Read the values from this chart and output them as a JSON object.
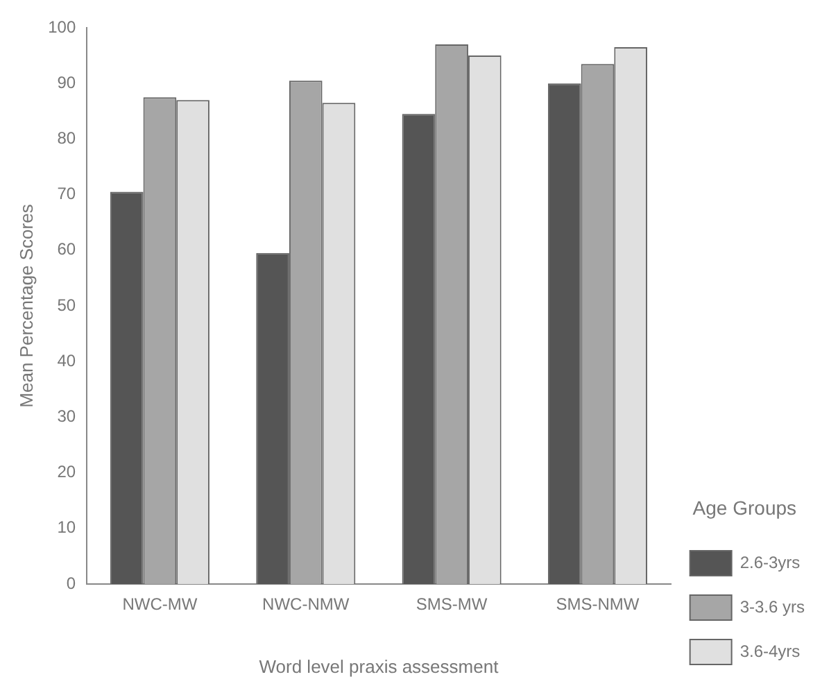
{
  "chart_data": {
    "type": "bar",
    "xlabel": "Word level praxis assessment",
    "ylabel": "Mean Percentage Scores",
    "legend_title": "Age Groups",
    "categories": [
      "NWC-MW",
      "NWC-NMW",
      "SMS-MW",
      "SMS-NMW"
    ],
    "series": [
      {
        "name": "2.6-3yrs",
        "color": "#555555",
        "values": [
          70.5,
          59.5,
          84.5,
          90
        ]
      },
      {
        "name": "3-3.6 yrs",
        "color": "#a6a6a6",
        "values": [
          87.5,
          90.5,
          97,
          93.5
        ]
      },
      {
        "name": "3.6-4yrs",
        "color": "#e0e0e0",
        "values": [
          87,
          86.5,
          95,
          96.5
        ]
      }
    ],
    "ylim": [
      0,
      100
    ],
    "yticks": [
      0,
      10,
      20,
      30,
      40,
      50,
      60,
      70,
      80,
      90,
      100
    ],
    "grid": false,
    "legend": "right"
  }
}
